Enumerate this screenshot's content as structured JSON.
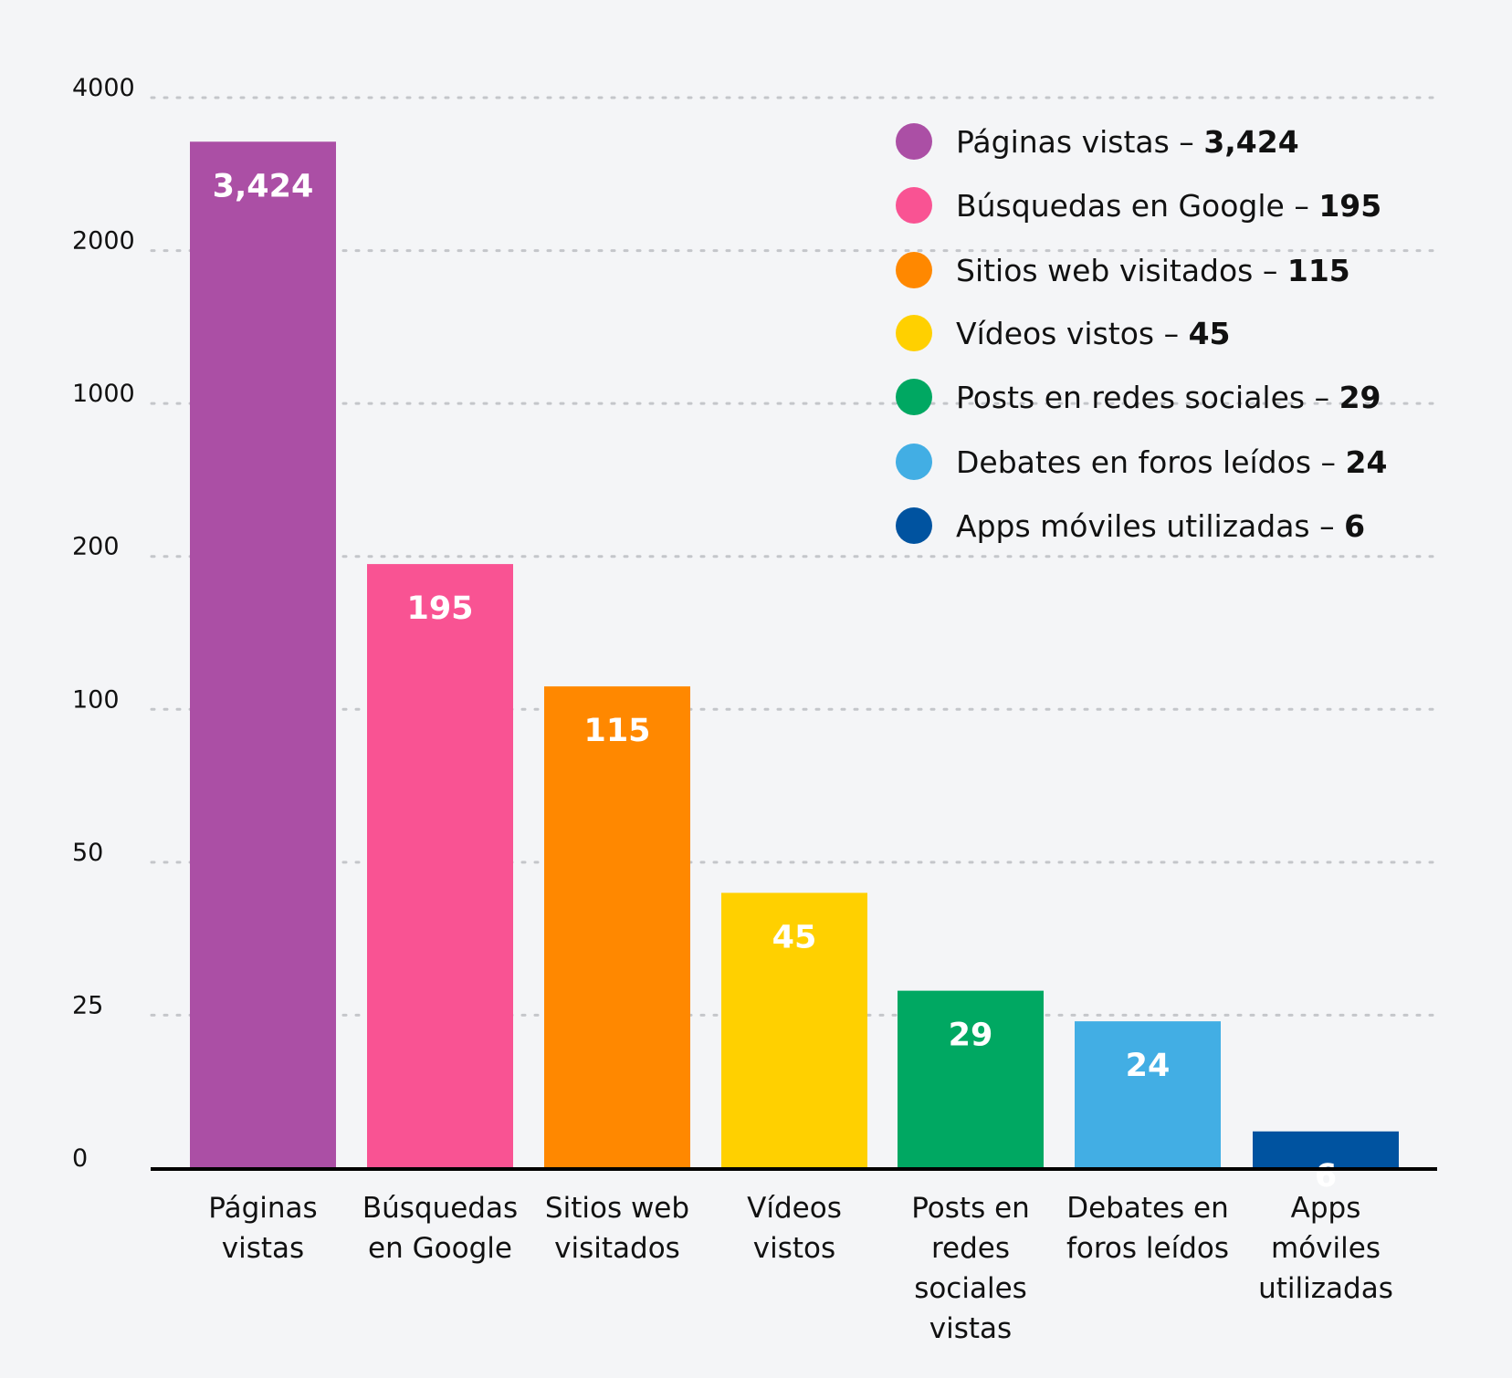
{
  "chart_data": {
    "type": "bar",
    "title": "",
    "xlabel": "",
    "ylabel": "",
    "y_scale": "piecewise (non-linear, equally spaced ticks)",
    "yticks": [
      0,
      25,
      50,
      100,
      200,
      1000,
      2000,
      4000
    ],
    "ytick_labels": [
      "0",
      "25",
      "50",
      "100",
      "200",
      "1000",
      "2000",
      "4000"
    ],
    "ylim": [
      0,
      4000
    ],
    "grid": true,
    "legend_position": "top-right",
    "categories": [
      [
        "Páginas",
        "vistas"
      ],
      [
        "Búsquedas",
        "en Google"
      ],
      [
        "Sitios web",
        "visitados"
      ],
      [
        "Vídeos",
        "vistos"
      ],
      [
        "Posts en",
        "redes",
        "sociales",
        "vistas"
      ],
      [
        "Debates en",
        "foros leídos"
      ],
      [
        "Apps",
        "móviles",
        "utilizadas"
      ]
    ],
    "values": [
      3424,
      195,
      115,
      45,
      29,
      24,
      6
    ],
    "value_labels": [
      "3,424",
      "195",
      "115",
      "45",
      "29",
      "24",
      "6"
    ],
    "colors": [
      "#AB4FA5",
      "#F95393",
      "#FF8800",
      "#FFD000",
      "#00A862",
      "#42AEE4",
      "#0053A0"
    ],
    "legend": [
      {
        "label": "Páginas vistas – ",
        "value": "3,424"
      },
      {
        "label": "Búsquedas en Google – ",
        "value": "195"
      },
      {
        "label": "Sitios web visitados – ",
        "value": "115"
      },
      {
        "label": "Vídeos vistos – ",
        "value": "45"
      },
      {
        "label": "Posts en redes sociales – ",
        "value": "29"
      },
      {
        "label": "Debates en foros leídos – ",
        "value": "24"
      },
      {
        "label": "Apps móviles utilizadas – ",
        "value": "6"
      }
    ]
  }
}
